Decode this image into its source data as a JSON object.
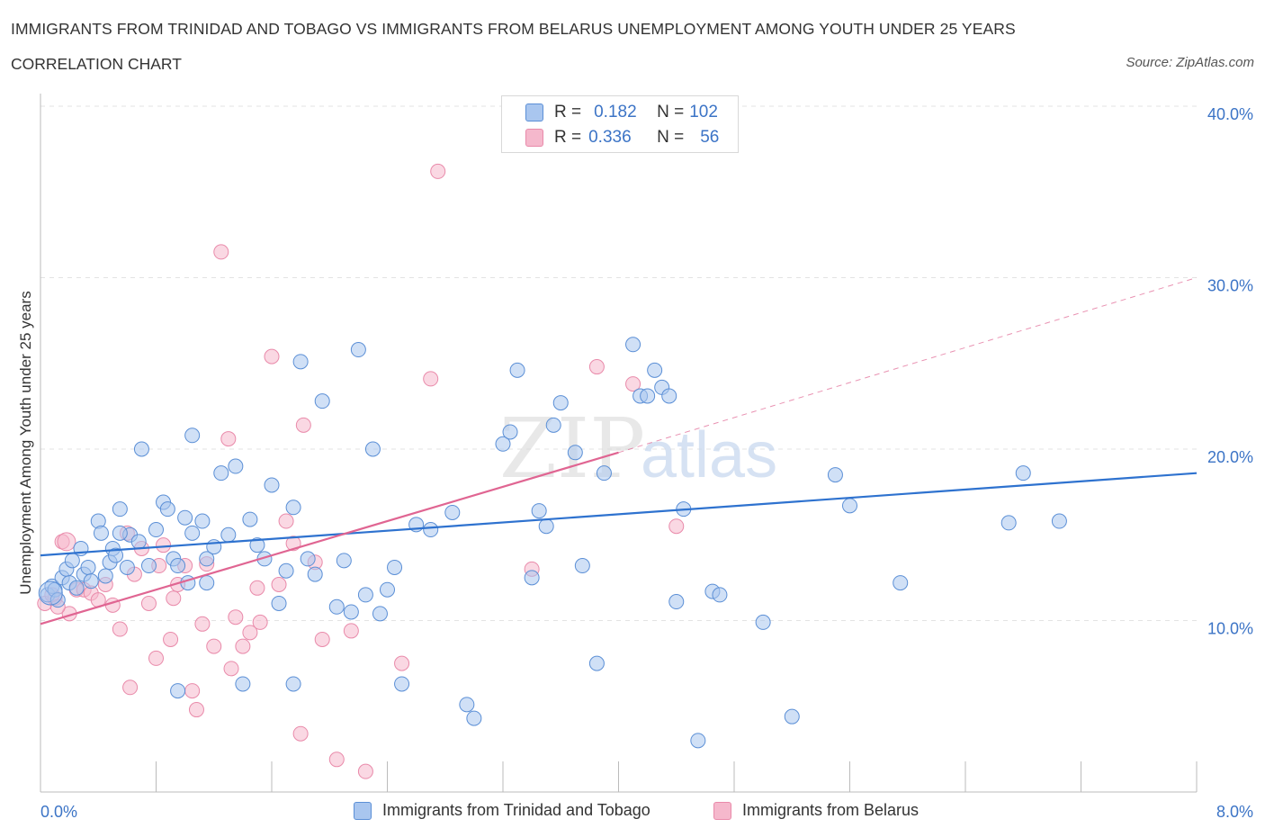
{
  "header": {
    "title": "IMMIGRANTS FROM TRINIDAD AND TOBAGO VS IMMIGRANTS FROM BELARUS UNEMPLOYMENT AMONG YOUTH UNDER 25 YEARS",
    "subtitle": "CORRELATION CHART",
    "source": "Source: ZipAtlas.com"
  },
  "legend_top": {
    "rows": [
      {
        "r_label": "R =",
        "r_value": "0.182",
        "n_label": "N =",
        "n_value": "102"
      },
      {
        "r_label": "R =",
        "r_value": "0.336",
        "n_label": "N =",
        "n_value": "56"
      }
    ]
  },
  "legend_bottom": {
    "items": [
      "Immigrants from Trinidad and Tobago",
      "Immigrants from Belarus"
    ]
  },
  "colors": {
    "blue_fill": "#a9c6ef",
    "blue_stroke": "#5b8fd6",
    "blue_line": "#2e72cf",
    "pink_fill": "#f5b8cc",
    "pink_stroke": "#e98aaa",
    "pink_line": "#e06592",
    "tick_text": "#3c74c6",
    "grid": "#e3e3e3"
  },
  "chart_data": {
    "type": "scatter",
    "title": "IMMIGRANTS FROM TRINIDAD AND TOBAGO VS IMMIGRANTS FROM BELARUS UNEMPLOYMENT AMONG YOUTH UNDER 25 YEARS",
    "ylabel": "Unemployment Among Youth under 25 years",
    "xlabel": "",
    "xlim": [
      0,
      8
    ],
    "ylim": [
      0,
      40
    ],
    "x_tick_labels": [
      "0.0%",
      "8.0%"
    ],
    "y_tick_labels": [
      "10.0%",
      "20.0%",
      "30.0%",
      "40.0%"
    ],
    "y_ticks": [
      10,
      20,
      30,
      40
    ],
    "grid": true,
    "watermark": "ZIPatlas",
    "series": [
      {
        "name": "Immigrants from Trinidad and Tobago",
        "R": 0.182,
        "N": 102,
        "trend": {
          "x": [
            0,
            8
          ],
          "y": [
            13.8,
            18.6
          ]
        },
        "points": [
          [
            0.05,
            11.5
          ],
          [
            0.08,
            12.0
          ],
          [
            0.1,
            11.8
          ],
          [
            0.12,
            11.2
          ],
          [
            0.15,
            12.5
          ],
          [
            0.18,
            13.0
          ],
          [
            0.2,
            12.2
          ],
          [
            0.22,
            13.5
          ],
          [
            0.25,
            11.9
          ],
          [
            0.28,
            14.2
          ],
          [
            0.3,
            12.7
          ],
          [
            0.33,
            13.1
          ],
          [
            0.35,
            12.3
          ],
          [
            0.4,
            15.8
          ],
          [
            0.42,
            15.1
          ],
          [
            0.45,
            12.6
          ],
          [
            0.48,
            13.4
          ],
          [
            0.5,
            14.2
          ],
          [
            0.52,
            13.8
          ],
          [
            0.55,
            16.5
          ],
          [
            0.6,
            13.1
          ],
          [
            0.62,
            15.0
          ],
          [
            0.68,
            14.6
          ],
          [
            0.7,
            20.0
          ],
          [
            0.75,
            13.2
          ],
          [
            0.8,
            15.3
          ],
          [
            0.85,
            16.9
          ],
          [
            0.88,
            16.5
          ],
          [
            0.92,
            13.6
          ],
          [
            0.95,
            13.2
          ],
          [
            1.0,
            16.0
          ],
          [
            1.02,
            12.2
          ],
          [
            1.05,
            15.1
          ],
          [
            1.12,
            15.8
          ],
          [
            1.15,
            13.6
          ],
          [
            1.2,
            14.3
          ],
          [
            1.25,
            18.6
          ],
          [
            1.3,
            15.0
          ],
          [
            1.35,
            19.0
          ],
          [
            1.45,
            15.9
          ],
          [
            1.5,
            14.4
          ],
          [
            1.55,
            13.6
          ],
          [
            1.6,
            17.9
          ],
          [
            1.65,
            11.0
          ],
          [
            1.7,
            12.9
          ],
          [
            1.75,
            16.6
          ],
          [
            1.8,
            25.1
          ],
          [
            1.85,
            13.6
          ],
          [
            1.9,
            12.7
          ],
          [
            1.95,
            22.8
          ],
          [
            2.05,
            10.8
          ],
          [
            2.1,
            13.5
          ],
          [
            2.15,
            10.5
          ],
          [
            2.2,
            25.8
          ],
          [
            2.25,
            11.5
          ],
          [
            2.3,
            20.0
          ],
          [
            2.35,
            10.4
          ],
          [
            2.4,
            11.8
          ],
          [
            2.45,
            13.1
          ],
          [
            2.5,
            6.3
          ],
          [
            2.7,
            15.3
          ],
          [
            2.85,
            16.3
          ],
          [
            2.95,
            5.1
          ],
          [
            3.0,
            4.3
          ],
          [
            3.2,
            20.3
          ],
          [
            3.25,
            21.0
          ],
          [
            3.3,
            24.6
          ],
          [
            3.4,
            12.5
          ],
          [
            3.45,
            16.4
          ],
          [
            3.5,
            15.5
          ],
          [
            3.55,
            21.4
          ],
          [
            3.6,
            22.7
          ],
          [
            3.7,
            19.8
          ],
          [
            3.75,
            13.2
          ],
          [
            3.85,
            7.5
          ],
          [
            3.9,
            18.6
          ],
          [
            4.1,
            26.1
          ],
          [
            4.15,
            23.1
          ],
          [
            4.2,
            23.1
          ],
          [
            4.25,
            24.6
          ],
          [
            4.3,
            23.6
          ],
          [
            4.35,
            23.1
          ],
          [
            4.4,
            11.1
          ],
          [
            4.45,
            16.5
          ],
          [
            4.55,
            3.0
          ],
          [
            4.65,
            11.7
          ],
          [
            4.7,
            11.5
          ],
          [
            5.0,
            9.9
          ],
          [
            5.2,
            4.4
          ],
          [
            5.5,
            18.5
          ],
          [
            5.6,
            16.7
          ],
          [
            5.95,
            12.2
          ],
          [
            6.7,
            15.7
          ],
          [
            6.8,
            18.6
          ],
          [
            7.05,
            15.8
          ],
          [
            0.95,
            5.9
          ],
          [
            1.4,
            6.3
          ],
          [
            1.75,
            6.3
          ],
          [
            1.05,
            20.8
          ],
          [
            0.55,
            15.1
          ],
          [
            1.15,
            12.2
          ],
          [
            2.6,
            15.6
          ]
        ]
      },
      {
        "name": "Immigrants from Belarus",
        "R": 0.336,
        "N": 56,
        "trend": {
          "x": [
            0,
            4.0
          ],
          "y": [
            9.8,
            19.8
          ]
        },
        "trend_extended": {
          "x": [
            4.0,
            8
          ],
          "y": [
            19.8,
            30.0
          ]
        },
        "points": [
          [
            0.03,
            11.0
          ],
          [
            0.1,
            11.3
          ],
          [
            0.15,
            14.6
          ],
          [
            0.2,
            10.4
          ],
          [
            0.25,
            11.8
          ],
          [
            0.3,
            11.8
          ],
          [
            0.35,
            11.6
          ],
          [
            0.4,
            11.2
          ],
          [
            0.45,
            12.1
          ],
          [
            0.5,
            10.9
          ],
          [
            0.55,
            9.5
          ],
          [
            0.6,
            15.1
          ],
          [
            0.62,
            6.1
          ],
          [
            0.65,
            12.7
          ],
          [
            0.7,
            14.2
          ],
          [
            0.75,
            11.0
          ],
          [
            0.8,
            7.8
          ],
          [
            0.82,
            13.2
          ],
          [
            0.85,
            14.4
          ],
          [
            0.9,
            8.9
          ],
          [
            0.92,
            11.3
          ],
          [
            0.95,
            12.1
          ],
          [
            1.0,
            13.2
          ],
          [
            1.05,
            5.9
          ],
          [
            1.08,
            4.8
          ],
          [
            1.12,
            9.8
          ],
          [
            1.15,
            13.3
          ],
          [
            1.2,
            8.5
          ],
          [
            1.25,
            31.5
          ],
          [
            1.3,
            20.6
          ],
          [
            1.32,
            7.2
          ],
          [
            1.35,
            10.2
          ],
          [
            1.4,
            8.5
          ],
          [
            1.45,
            9.3
          ],
          [
            1.5,
            11.9
          ],
          [
            1.52,
            9.9
          ],
          [
            1.6,
            25.4
          ],
          [
            1.65,
            12.1
          ],
          [
            1.7,
            15.8
          ],
          [
            1.75,
            14.5
          ],
          [
            1.8,
            3.4
          ],
          [
            1.82,
            21.4
          ],
          [
            1.9,
            13.4
          ],
          [
            1.95,
            8.9
          ],
          [
            2.05,
            1.9
          ],
          [
            2.15,
            9.4
          ],
          [
            2.25,
            1.2
          ],
          [
            2.5,
            7.5
          ],
          [
            2.7,
            24.1
          ],
          [
            2.75,
            36.2
          ],
          [
            3.4,
            13.0
          ],
          [
            3.85,
            24.8
          ],
          [
            4.1,
            23.8
          ],
          [
            4.4,
            15.5
          ],
          [
            0.08,
            11.5
          ],
          [
            0.12,
            10.8
          ]
        ]
      }
    ]
  }
}
